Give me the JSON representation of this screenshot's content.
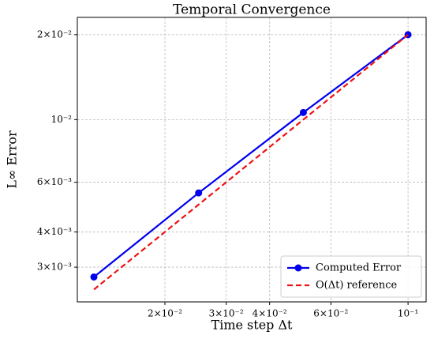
{
  "chart_data": {
    "type": "line",
    "title": "Temporal Convergence",
    "x_label": "Time step Δt",
    "y_label": "L∞ Error",
    "log_x": true,
    "log_y": true,
    "grid": true,
    "legend": "lower right",
    "x": [
      0.0125,
      0.025,
      0.05,
      0.1
    ],
    "series": [
      {
        "name": "Computed Error",
        "color": "#0000ee",
        "style": "solid",
        "marker": true,
        "values": [
          0.00277,
          0.0055,
          0.0106,
          0.02
        ]
      },
      {
        "name": "O(Δt) reference",
        "color": "#ee1111",
        "style": "dashed",
        "marker": false,
        "values": [
          0.0025,
          0.005,
          0.01,
          0.02
        ]
      }
    ],
    "xlim": [
      0.0112,
      0.1127
    ],
    "xticks": [
      {
        "value": 0.02,
        "label": "2×10⁻²"
      },
      {
        "value": 0.03,
        "label": "3×10⁻²"
      },
      {
        "value": 0.04,
        "label": "4×10⁻²"
      },
      {
        "value": 0.06,
        "label": "6×10⁻²"
      },
      {
        "value": 0.1,
        "label": "10⁻¹"
      }
    ],
    "ylim": [
      0.00226,
      0.02303
    ],
    "yticks": [
      {
        "value": 0.003,
        "label": "3×10⁻³"
      },
      {
        "value": 0.004,
        "label": "4×10⁻³"
      },
      {
        "value": 0.006,
        "label": "6×10⁻³"
      },
      {
        "value": 0.01,
        "label": "10⁻²"
      },
      {
        "value": 0.02,
        "label": "2×10⁻²"
      }
    ]
  }
}
